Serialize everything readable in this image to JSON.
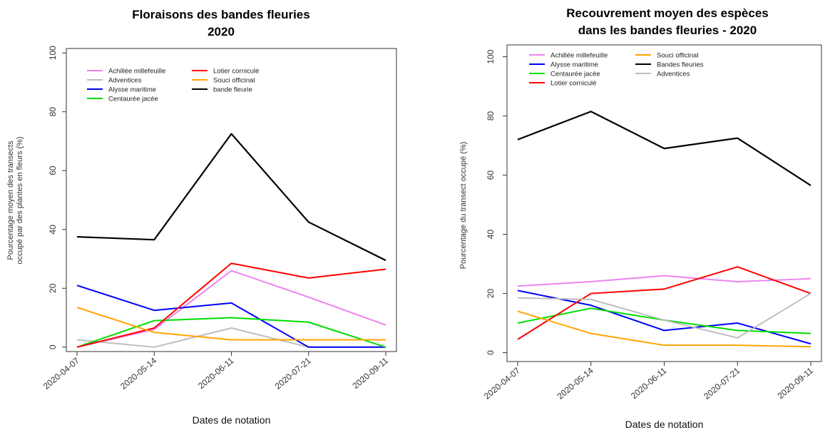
{
  "chart_data": [
    {
      "type": "line",
      "title_lines": [
        "Floraisons des bandes fleuries",
        "2020"
      ],
      "xlabel": "Dates de notation",
      "ylabel_lines": [
        "Pourcentage moyen des transects",
        "occupé par des plantes en fleurs (%)"
      ],
      "categories": [
        "2020-04-07",
        "2020-05-14",
        "2020-06-11",
        "2020-07-21",
        "2020-09-11"
      ],
      "ylim": [
        0,
        100
      ],
      "yticks": [
        "0",
        "20",
        "40",
        "60",
        "80",
        "100"
      ],
      "grid": false,
      "series": [
        {
          "name": "Achillée millefeuille",
          "color": "#ee82ee",
          "values": [
            0,
            6,
            26,
            17,
            7.5
          ]
        },
        {
          "name": "Adventices",
          "color": "#bebebe",
          "values": [
            2.5,
            0,
            6.5,
            0,
            0
          ]
        },
        {
          "name": "Alysse maritime",
          "color": "#0000ff",
          "values": [
            21,
            12.5,
            15,
            0,
            0
          ]
        },
        {
          "name": "Centaurée jacée",
          "color": "#00dd00",
          "values": [
            0,
            9,
            10,
            8.5,
            0
          ]
        },
        {
          "name": "Lotier corniculé",
          "color": "#ff0000",
          "values": [
            0,
            6.5,
            28.5,
            23.5,
            26.5
          ]
        },
        {
          "name": "Souci officinal",
          "color": "#ffa500",
          "values": [
            13.5,
            5,
            2.5,
            2.5,
            2.5
          ]
        },
        {
          "name": "bande fleurie",
          "color": "#000000",
          "values": [
            37.5,
            36.5,
            72.5,
            42.5,
            29.5
          ]
        }
      ]
    },
    {
      "type": "line",
      "title_lines": [
        "Recouvrement moyen des espèces",
        "dans les bandes fleuries - 2020"
      ],
      "xlabel": "Dates de notation",
      "ylabel_lines": [
        "Pourcentage du transect occupé (%)"
      ],
      "categories": [
        "2020-04-07",
        "2020-05-14",
        "2020-06-11",
        "2020-07-21",
        "2020-09-11"
      ],
      "ylim": [
        0,
        100
      ],
      "yticks": [
        "0",
        "20",
        "40",
        "60",
        "80",
        "100"
      ],
      "grid": false,
      "series": [
        {
          "name": "Achillée millefeuille",
          "color": "#ee82ee",
          "values": [
            22.5,
            24,
            26,
            24,
            25
          ]
        },
        {
          "name": "Alysse maritime",
          "color": "#0000ff",
          "values": [
            21,
            16,
            7.5,
            10,
            3
          ]
        },
        {
          "name": "Centaurée jacée",
          "color": "#00dd00",
          "values": [
            10,
            15,
            11,
            7.5,
            6.5
          ]
        },
        {
          "name": "Lotier corniculé",
          "color": "#ff0000",
          "values": [
            4.5,
            20,
            21.5,
            29,
            20
          ]
        },
        {
          "name": "Souci officinal",
          "color": "#ffa500",
          "values": [
            14,
            6.5,
            2.5,
            2.5,
            2
          ]
        },
        {
          "name": "Bandes fleuries",
          "color": "#000000",
          "values": [
            72,
            81.5,
            69,
            72.5,
            56.5
          ]
        },
        {
          "name": "Adventices",
          "color": "#bebebe",
          "values": [
            18.5,
            18,
            11,
            5,
            20
          ]
        }
      ]
    }
  ]
}
